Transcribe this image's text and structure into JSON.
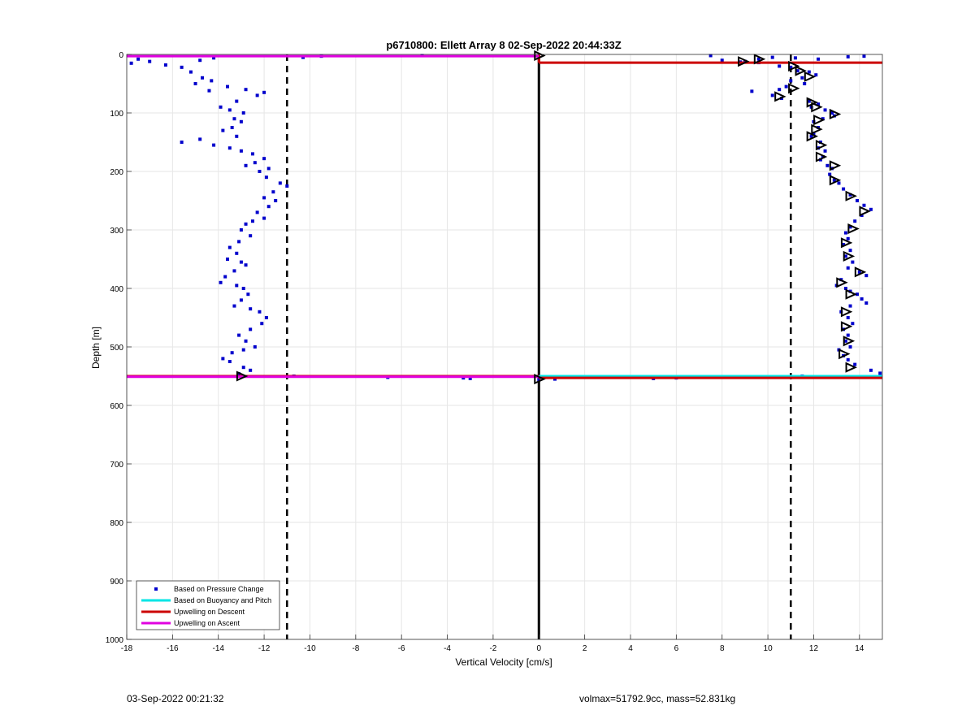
{
  "chart_data": {
    "type": "scatter",
    "title": "p6710800: Ellett Array 8 02-Sep-2022 20:44:33Z",
    "xlabel": "Vertical Velocity [cm/s]",
    "ylabel": "Depth [m]",
    "xlim": [
      -18,
      15
    ],
    "ylim": [
      0,
      1000
    ],
    "y_reversed": true,
    "xticks": [
      -18,
      -16,
      -14,
      -12,
      -10,
      -8,
      -6,
      -4,
      -2,
      0,
      2,
      4,
      6,
      8,
      10,
      12,
      14
    ],
    "yticks": [
      0,
      100,
      200,
      300,
      400,
      500,
      600,
      700,
      800,
      900,
      1000
    ],
    "grid": true,
    "legend_position": "bottom-left",
    "legend": [
      {
        "label": "Based on Pressure Change",
        "color": "#0000cc",
        "style": "dot"
      },
      {
        "label": "Based on Buoyancy and Pitch",
        "color": "#00e5e5",
        "style": "line"
      },
      {
        "label": "Upwelling on Descent",
        "color": "#cc0000",
        "style": "line"
      },
      {
        "label": "Upwelling on Ascent",
        "color": "#e000e0",
        "style": "line"
      }
    ],
    "reference_lines": {
      "solid_x": 0,
      "dashed_x": [
        -11,
        11
      ]
    },
    "descent_pressure_points": [
      [
        7.5,
        2
      ],
      [
        8.0,
        10
      ],
      [
        9.0,
        12
      ],
      [
        9.6,
        8
      ],
      [
        10.2,
        5
      ],
      [
        11.2,
        6
      ],
      [
        12.2,
        8
      ],
      [
        13.5,
        4
      ],
      [
        14.2,
        3
      ],
      [
        8.8,
        13
      ],
      [
        9.6,
        14
      ],
      [
        10.5,
        20
      ],
      [
        11.0,
        22
      ],
      [
        11.3,
        28
      ],
      [
        11.8,
        30
      ],
      [
        12.1,
        35
      ],
      [
        11.5,
        40
      ],
      [
        11.0,
        45
      ],
      [
        11.6,
        50
      ],
      [
        10.8,
        55
      ],
      [
        10.5,
        60
      ],
      [
        9.3,
        63
      ],
      [
        10.2,
        70
      ],
      [
        10.6,
        75
      ],
      [
        11.8,
        80
      ],
      [
        12.2,
        85
      ],
      [
        11.9,
        90
      ],
      [
        12.5,
        95
      ],
      [
        12.8,
        100
      ],
      [
        12.9,
        105
      ],
      [
        12.4,
        110
      ],
      [
        12.0,
        115
      ],
      [
        12.2,
        125
      ],
      [
        12.0,
        135
      ],
      [
        11.9,
        140
      ],
      [
        12.3,
        150
      ],
      [
        12.2,
        160
      ],
      [
        12.5,
        165
      ],
      [
        12.4,
        175
      ],
      [
        12.3,
        180
      ],
      [
        12.6,
        190
      ],
      [
        12.8,
        195
      ],
      [
        12.7,
        205
      ],
      [
        12.9,
        215
      ],
      [
        13.1,
        220
      ],
      [
        13.3,
        230
      ],
      [
        13.6,
        240
      ],
      [
        13.9,
        250
      ],
      [
        14.2,
        258
      ],
      [
        14.5,
        265
      ],
      [
        14.1,
        275
      ],
      [
        13.8,
        285
      ],
      [
        13.6,
        295
      ],
      [
        13.4,
        305
      ],
      [
        13.5,
        315
      ],
      [
        13.3,
        325
      ],
      [
        13.6,
        335
      ],
      [
        13.4,
        345
      ],
      [
        13.7,
        355
      ],
      [
        13.5,
        365
      ],
      [
        14.0,
        372
      ],
      [
        14.3,
        378
      ],
      [
        13.2,
        385
      ],
      [
        13.0,
        395
      ],
      [
        13.4,
        400
      ],
      [
        13.6,
        405
      ],
      [
        13.9,
        410
      ],
      [
        14.1,
        418
      ],
      [
        14.3,
        425
      ],
      [
        13.6,
        430
      ],
      [
        13.2,
        440
      ],
      [
        13.5,
        450
      ],
      [
        13.7,
        460
      ],
      [
        13.3,
        470
      ],
      [
        13.5,
        480
      ],
      [
        13.4,
        490
      ],
      [
        13.6,
        500
      ],
      [
        13.1,
        505
      ],
      [
        13.3,
        515
      ],
      [
        13.5,
        522
      ],
      [
        13.8,
        530
      ],
      [
        14.5,
        540
      ],
      [
        14.9,
        545
      ],
      [
        11.5,
        550
      ],
      [
        9.2,
        551
      ],
      [
        7.7,
        552
      ],
      [
        6.0,
        553
      ],
      [
        5.0,
        554
      ],
      [
        0.7,
        555
      ]
    ],
    "descent_triangle_markers": [
      [
        0,
        2
      ],
      [
        8.9,
        12
      ],
      [
        9.6,
        8
      ],
      [
        11.1,
        20
      ],
      [
        11.4,
        28
      ],
      [
        11.8,
        38
      ],
      [
        11.1,
        58
      ],
      [
        10.5,
        72
      ],
      [
        11.9,
        82
      ],
      [
        12.1,
        90
      ],
      [
        12.9,
        102
      ],
      [
        12.2,
        112
      ],
      [
        12.1,
        128
      ],
      [
        11.9,
        140
      ],
      [
        12.3,
        155
      ],
      [
        12.3,
        175
      ],
      [
        12.9,
        190
      ],
      [
        12.9,
        215
      ],
      [
        13.6,
        242
      ],
      [
        14.2,
        268
      ],
      [
        13.7,
        298
      ],
      [
        13.4,
        322
      ],
      [
        13.5,
        345
      ],
      [
        14.0,
        372
      ],
      [
        13.2,
        390
      ],
      [
        13.6,
        410
      ],
      [
        13.4,
        440
      ],
      [
        13.4,
        465
      ],
      [
        13.5,
        490
      ],
      [
        13.3,
        512
      ],
      [
        13.6,
        535
      ],
      [
        0,
        555
      ]
    ],
    "ascent_pressure_points": [
      [
        -17.8,
        15
      ],
      [
        -17.5,
        8
      ],
      [
        -17.0,
        12
      ],
      [
        -16.3,
        18
      ],
      [
        -15.6,
        22
      ],
      [
        -14.8,
        10
      ],
      [
        -14.2,
        6
      ],
      [
        -10.3,
        5
      ],
      [
        -9.5,
        3
      ],
      [
        -5.1,
        2
      ],
      [
        -15.2,
        30
      ],
      [
        -14.7,
        40
      ],
      [
        -14.3,
        45
      ],
      [
        -15.0,
        50
      ],
      [
        -13.6,
        55
      ],
      [
        -14.4,
        62
      ],
      [
        -12.8,
        60
      ],
      [
        -12.3,
        70
      ],
      [
        -12.0,
        65
      ],
      [
        -13.2,
        80
      ],
      [
        -13.9,
        90
      ],
      [
        -13.5,
        95
      ],
      [
        -12.9,
        100
      ],
      [
        -13.3,
        110
      ],
      [
        -13.0,
        115
      ],
      [
        -13.4,
        125
      ],
      [
        -13.8,
        130
      ],
      [
        -13.2,
        140
      ],
      [
        -14.8,
        145
      ],
      [
        -15.6,
        150
      ],
      [
        -14.2,
        155
      ],
      [
        -13.5,
        160
      ],
      [
        -13.0,
        165
      ],
      [
        -12.5,
        170
      ],
      [
        -12.0,
        178
      ],
      [
        -12.4,
        185
      ],
      [
        -12.8,
        190
      ],
      [
        -11.8,
        195
      ],
      [
        -12.2,
        200
      ],
      [
        -11.9,
        210
      ],
      [
        -11.3,
        220
      ],
      [
        -11.0,
        225
      ],
      [
        -11.6,
        235
      ],
      [
        -12.0,
        245
      ],
      [
        -11.5,
        250
      ],
      [
        -11.8,
        260
      ],
      [
        -12.3,
        270
      ],
      [
        -12.0,
        280
      ],
      [
        -12.5,
        285
      ],
      [
        -12.8,
        290
      ],
      [
        -13.0,
        300
      ],
      [
        -12.6,
        310
      ],
      [
        -13.1,
        320
      ],
      [
        -13.5,
        330
      ],
      [
        -13.2,
        340
      ],
      [
        -13.6,
        350
      ],
      [
        -13.0,
        355
      ],
      [
        -12.8,
        360
      ],
      [
        -13.3,
        370
      ],
      [
        -13.7,
        380
      ],
      [
        -13.9,
        390
      ],
      [
        -13.2,
        395
      ],
      [
        -12.9,
        400
      ],
      [
        -12.7,
        410
      ],
      [
        -13.0,
        420
      ],
      [
        -13.3,
        430
      ],
      [
        -12.6,
        435
      ],
      [
        -12.2,
        440
      ],
      [
        -11.9,
        450
      ],
      [
        -12.1,
        460
      ],
      [
        -12.6,
        470
      ],
      [
        -13.1,
        480
      ],
      [
        -12.8,
        490
      ],
      [
        -12.4,
        500
      ],
      [
        -12.9,
        505
      ],
      [
        -13.4,
        510
      ],
      [
        -13.8,
        520
      ],
      [
        -13.5,
        525
      ],
      [
        -12.9,
        535
      ],
      [
        -12.6,
        540
      ],
      [
        -13.1,
        546
      ],
      [
        -10.7,
        550
      ],
      [
        -6.6,
        552
      ],
      [
        -3.3,
        553
      ],
      [
        -3.0,
        554
      ],
      [
        0.0,
        556
      ]
    ],
    "ascent_triangle_markers": [
      [
        -13.0,
        550
      ]
    ],
    "buoyancy_pitch_line": {
      "from": [
        0,
        550
      ],
      "to": [
        15,
        550
      ]
    },
    "upwelling_descent_segments": [
      {
        "from": [
          0,
          0
        ],
        "to": [
          0,
          14
        ]
      },
      {
        "from": [
          0,
          14
        ],
        "to": [
          15,
          14
        ]
      },
      {
        "from": [
          -18,
          550
        ],
        "to": [
          0,
          550
        ]
      },
      {
        "from": [
          0,
          553
        ],
        "to": [
          15,
          553
        ]
      }
    ],
    "upwelling_ascent_segments": [
      {
        "from": [
          -18,
          3
        ],
        "to": [
          0,
          3
        ]
      },
      {
        "from": [
          -18,
          551
        ],
        "to": [
          0,
          551
        ]
      }
    ]
  },
  "footer": {
    "left": "03-Sep-2022 00:21:32",
    "right": "volmax=51792.9cc, mass=52.831kg"
  }
}
